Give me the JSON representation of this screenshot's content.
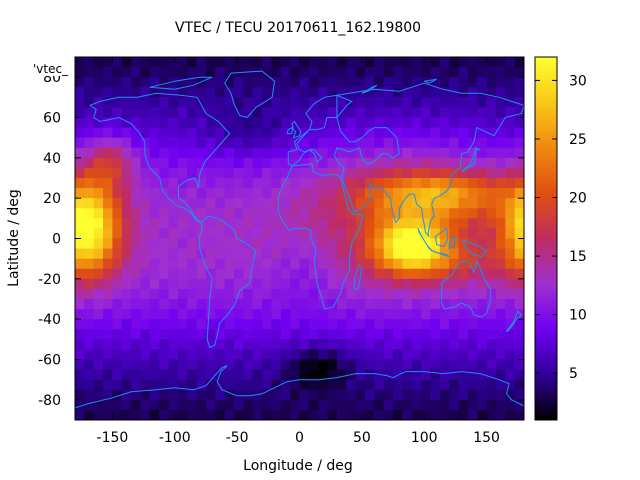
{
  "chart_data": {
    "type": "heatmap",
    "title": "VTEC / TECU 20170611_162.19800",
    "xlabel": "Longitude / deg",
    "ylabel": "Latitude / deg",
    "series_label": "'vtec_",
    "xlim": [
      -180,
      180
    ],
    "ylim": [
      -90,
      90
    ],
    "xticks": [
      -150,
      -100,
      -50,
      0,
      50,
      100,
      150
    ],
    "yticks": [
      -80,
      -60,
      -40,
      -20,
      0,
      20,
      40,
      60,
      80
    ],
    "colorbar": {
      "min": 1,
      "max": 32,
      "ticks": [
        5,
        10,
        15,
        20,
        25,
        30
      ]
    },
    "grid": false,
    "cell_size_deg": [
      7.5,
      5
    ],
    "features": [
      {
        "name": "pacific-anomaly",
        "lon": -170,
        "lat": 5,
        "peak": 20.5,
        "sx": 18,
        "sy": 16
      },
      {
        "name": "pacific-north-lobe",
        "lon": -152,
        "lat": 38,
        "peak": 7,
        "sx": 14,
        "sy": 9
      },
      {
        "name": "asia-peak",
        "lon": 90,
        "lat": -3,
        "peak": 17.5,
        "sx": 20,
        "sy": 9
      },
      {
        "name": "asia-north-crest",
        "lon": 110,
        "lat": 22,
        "peak": 11,
        "sx": 40,
        "sy": 8
      },
      {
        "name": "asia-broad",
        "lon": 85,
        "lat": 12,
        "peak": 5.5,
        "sx": 55,
        "sy": 24
      },
      {
        "name": "asia-south-crest",
        "lon": 115,
        "lat": -12,
        "peak": 4,
        "sx": 35,
        "sy": 7
      }
    ],
    "background_base": 11,
    "coastline_color": "#1d90f0",
    "colormap": [
      "#000000",
      "#30009a",
      "#7000f0",
      "#a030d0",
      "#c02c60",
      "#e05010",
      "#f08810",
      "#f8c818",
      "#ffff30"
    ]
  }
}
